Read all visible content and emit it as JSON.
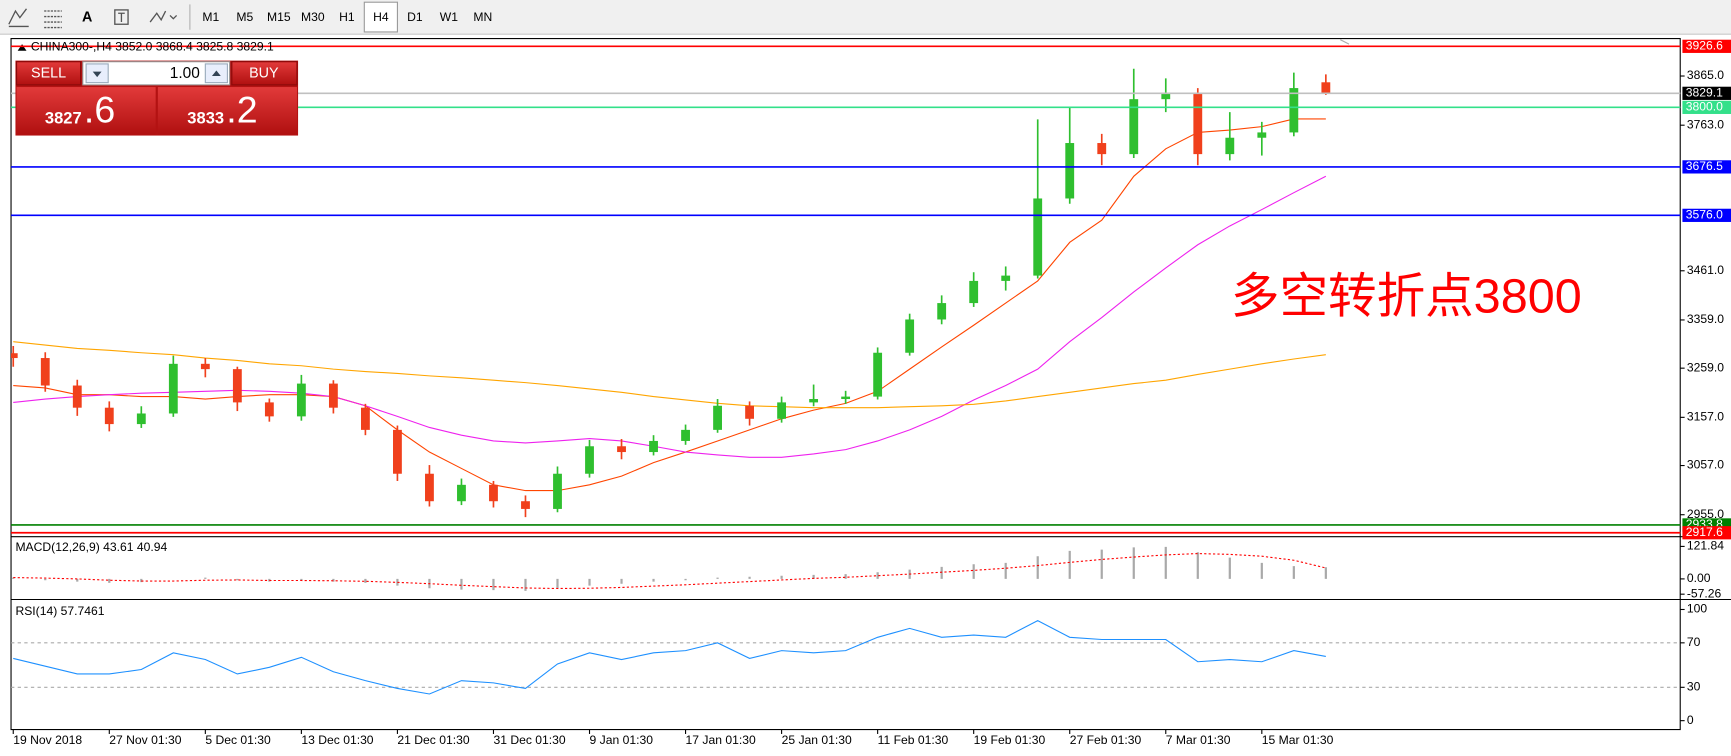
{
  "toolbar": {
    "text_tool": "A",
    "timeframes": [
      "M1",
      "M5",
      "M15",
      "M30",
      "H1",
      "H4",
      "D1",
      "W1",
      "MN"
    ],
    "active_timeframe": "H4"
  },
  "trade_panel": {
    "sell_label": "SELL",
    "lot": "1.00",
    "buy_label": "BUY",
    "sell_price_main": "3827",
    "sell_price_frac": ".6",
    "buy_price_main": "3833",
    "buy_price_frac": ".2"
  },
  "chart_data": [
    {
      "type": "candlestick",
      "title": "CHINA300-,H4  3852.0 3868.4 3825.8 3829.1",
      "categories": [
        "19 Nov 2018",
        null,
        null,
        "27 Nov 01:30",
        null,
        null,
        "5 Dec 01:30",
        null,
        null,
        "13 Dec 01:30",
        null,
        null,
        "21 Dec 01:30",
        null,
        null,
        "31 Dec 01:30",
        null,
        null,
        "9 Jan 01:30",
        null,
        null,
        "17 Jan 01:30",
        null,
        null,
        "25 Jan 01:30",
        null,
        null,
        "11 Feb 01:30",
        null,
        null,
        "19 Feb 01:30",
        null,
        null,
        "27 Feb 01:30",
        null,
        null,
        "7 Mar 01:30",
        null,
        null,
        "15 Mar 01:30",
        null,
        null
      ],
      "open": [
        3290,
        3280,
        3223,
        3177,
        3143,
        3165,
        3268,
        3257,
        3188,
        3159,
        3227,
        3177,
        3131,
        3040,
        2983,
        3017,
        2983,
        2967,
        3040,
        3097,
        3085,
        3108,
        3131,
        3181,
        3154,
        3188,
        3195,
        3200,
        3291,
        3360,
        3394,
        3440,
        3451,
        3611,
        3726,
        3703,
        3817,
        3828,
        3703,
        3737,
        3748,
        3852
      ],
      "high": [
        3305,
        3292,
        3235,
        3190,
        3180,
        3285,
        3280,
        3262,
        3196,
        3245,
        3234,
        3185,
        3140,
        3058,
        3030,
        3025,
        2995,
        3055,
        3110,
        3112,
        3120,
        3142,
        3195,
        3190,
        3200,
        3225,
        3212,
        3302,
        3372,
        3410,
        3458,
        3470,
        3775,
        3800,
        3745,
        3880,
        3860,
        3840,
        3790,
        3770,
        3872,
        3868.4
      ],
      "low": [
        3262,
        3210,
        3160,
        3128,
        3135,
        3158,
        3240,
        3170,
        3148,
        3150,
        3165,
        3120,
        3025,
        2972,
        2975,
        2970,
        2950,
        2960,
        3032,
        3070,
        3078,
        3100,
        3125,
        3140,
        3146,
        3180,
        3185,
        3194,
        3285,
        3350,
        3386,
        3420,
        3445,
        3600,
        3680,
        3695,
        3790,
        3680,
        3690,
        3700,
        3740,
        3825.8
      ],
      "close": [
        3280,
        3223,
        3177,
        3143,
        3165,
        3268,
        3257,
        3188,
        3159,
        3227,
        3177,
        3131,
        3040,
        2983,
        3017,
        2983,
        2967,
        3040,
        3097,
        3085,
        3108,
        3131,
        3181,
        3154,
        3188,
        3195,
        3200,
        3291,
        3360,
        3394,
        3440,
        3451,
        3611,
        3726,
        3703,
        3817,
        3828,
        3703,
        3737,
        3748,
        3840,
        3829.1
      ],
      "up_color": "#2fbf2f",
      "down_color": "#f0401c",
      "moving_averages": [
        {
          "color": "#ff4500",
          "values": [
            3223,
            3218,
            3204,
            3204,
            3200,
            3200,
            3195,
            3200,
            3204,
            3204,
            3200,
            3181,
            3131,
            3085,
            3051,
            3017,
            3005,
            3005,
            3017,
            3035,
            3063,
            3085,
            3108,
            3131,
            3154,
            3172,
            3186,
            3211,
            3257,
            3303,
            3348,
            3394,
            3440,
            3520,
            3566,
            3657,
            3714,
            3748,
            3753,
            3760,
            3776,
            3776
          ]
        },
        {
          "color": "#ee22ee",
          "values": [
            3188,
            3195,
            3200,
            3204,
            3207,
            3209,
            3211,
            3213,
            3211,
            3207,
            3200,
            3181,
            3159,
            3136,
            3120,
            3108,
            3104,
            3108,
            3113,
            3108,
            3097,
            3085,
            3079,
            3074,
            3074,
            3081,
            3090,
            3108,
            3131,
            3159,
            3193,
            3223,
            3257,
            3314,
            3364,
            3417,
            3467,
            3515,
            3554,
            3588,
            3623,
            3657
          ]
        },
        {
          "color": "#ffa500",
          "values": [
            3314,
            3307,
            3300,
            3296,
            3291,
            3287,
            3280,
            3275,
            3268,
            3264,
            3257,
            3252,
            3248,
            3243,
            3239,
            3234,
            3229,
            3223,
            3216,
            3209,
            3200,
            3193,
            3186,
            3181,
            3179,
            3177,
            3177,
            3177,
            3179,
            3181,
            3184,
            3191,
            3200,
            3209,
            3218,
            3227,
            3234,
            3246,
            3257,
            3268,
            3278,
            3287
          ]
        }
      ],
      "levels": [
        {
          "value": 3926.6,
          "label": "3926.6",
          "color": "#ff0000",
          "box": "#ff0000"
        },
        {
          "value": 3829.1,
          "label": "3829.1",
          "color": "#c0c0c0",
          "box": "#000000"
        },
        {
          "value": 3800,
          "label": "3800.0",
          "color": "#33e08a",
          "box": "#33e08a"
        },
        {
          "value": 3676.5,
          "label": "3676.5",
          "color": "#0000ff",
          "box": "#0000ff"
        },
        {
          "value": 3576,
          "label": "3576.0",
          "color": "#0000ff",
          "box": "#0000ff"
        },
        {
          "value": 2933.8,
          "label": "2933.8",
          "color": "#008000",
          "box": "#008000"
        },
        {
          "value": 2917.6,
          "label": "2917.6",
          "color": "#ff0000",
          "box": "#ff0000"
        }
      ],
      "annotation": "多空转折点3800",
      "annotation_color": "#ff0000",
      "ylim": [
        2911.7,
        3940.4
      ],
      "yticks": [
        {
          "value": 2955,
          "label": "2955.0"
        },
        {
          "value": 3057,
          "label": "3057.0"
        },
        {
          "value": 3157,
          "label": "3157.0"
        },
        {
          "value": 3259,
          "label": "3259.0"
        },
        {
          "value": 3359,
          "label": "3359.0"
        },
        {
          "value": 3461,
          "label": "3461.0"
        },
        {
          "value": 3763,
          "label": "3763.0"
        },
        {
          "value": 3865,
          "label": "3865.0"
        }
      ]
    },
    {
      "type": "macd",
      "title": "MACD(12,26,9) 43.61 40.94",
      "histogram": [
        5,
        -5,
        -10,
        -15,
        -12,
        0,
        5,
        -5,
        -10,
        -5,
        -10,
        -15,
        -25,
        -35,
        -40,
        -42,
        -45,
        -35,
        -25,
        -18,
        -10,
        -5,
        5,
        8,
        12,
        15,
        18,
        25,
        35,
        45,
        55,
        60,
        85,
        105,
        110,
        118,
        120,
        100,
        80,
        60,
        48,
        43.61
      ],
      "signal": [
        5,
        3,
        0,
        -5,
        -8,
        -8,
        -5,
        -4,
        -6,
        -6,
        -7,
        -9,
        -13,
        -18,
        -24,
        -29,
        -34,
        -36,
        -35,
        -32,
        -27,
        -22,
        -16,
        -10,
        -4,
        2,
        6,
        12,
        18,
        25,
        32,
        40,
        50,
        62,
        73,
        82,
        90,
        95,
        92,
        85,
        70,
        40.94
      ],
      "histogram_color": "#a9a9a9",
      "signal_color": "#ff0000",
      "ylim": [
        -69,
        150
      ],
      "yticks": [
        {
          "value": -57.26,
          "label": "-57.26"
        },
        {
          "value": 0,
          "label": "0.00"
        },
        {
          "value": 121.84,
          "label": "121.84"
        }
      ]
    },
    {
      "type": "line",
      "title": "RSI(14) 57.7461",
      "values": [
        56,
        49,
        42,
        42,
        46,
        61,
        55,
        42,
        48,
        57,
        44,
        36,
        29,
        24,
        36,
        34,
        29,
        51,
        61,
        55,
        61,
        63,
        70,
        56,
        63,
        61,
        63,
        75,
        83,
        75,
        77,
        75,
        90,
        75,
        73,
        73,
        73,
        53,
        55,
        53,
        63,
        57.7461
      ],
      "color": "#1e90ff",
      "levels": [
        30,
        70
      ],
      "ylim": [
        -7,
        106
      ],
      "yticks": [
        0,
        30,
        70,
        100
      ]
    }
  ]
}
